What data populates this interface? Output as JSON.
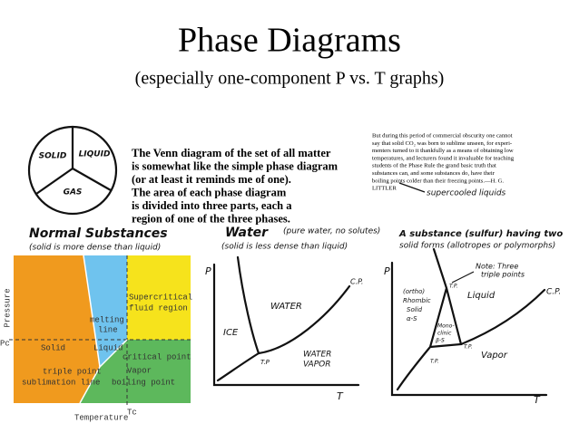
{
  "header": {
    "title": "Phase Diagrams",
    "subtitle": "(especially one-component P vs. T graphs)"
  },
  "venn": {
    "labels": [
      "SOLID",
      "LIQUID",
      "GAS"
    ],
    "caption": [
      "The Venn diagram of the set of all matter",
      "is somewhat like the simple phase diagram",
      "(or at least it reminds me of one).",
      "The area of each phase diagram",
      "is divided into three parts, each a",
      "region of one of the three phases."
    ]
  },
  "quote": {
    "lines": [
      "But during this period of commercial obscurity one cannot",
      "say that solid CO₂ was born to sublime unseen, for experi-",
      "menters turned to it thankfully as a means of obtaining low",
      "temperatures, and lecturers found it invaluable for teaching",
      "students of the Phase Rule the grand basic truth that",
      "substances can, and some substances do, have their",
      "boiling points colder than their freezing points.—H. G.",
      "LITTLER"
    ],
    "annotation": "supercooled liquids"
  },
  "panels": [
    {
      "heading": "Normal Substances",
      "notes": [
        "(solid is more dense than liquid)"
      ],
      "labels": [
        "Pressure",
        "Pc",
        "Supercritical",
        "fluid region",
        "melting",
        "line",
        "Solid",
        "Liquid",
        "critical point",
        "triple point",
        "Vapor",
        "sublimation line",
        "boiling point",
        "Temperature",
        "Tc"
      ]
    },
    {
      "heading": "Water",
      "notes": [
        "(pure water, no solutes)",
        "(solid is less dense than liquid)"
      ],
      "labels": [
        "P",
        "ICE",
        "WATER",
        "C.P.",
        "T.P",
        "WATER",
        "VAPOR",
        "T"
      ]
    },
    {
      "heading": "A substance (sulfur) having two",
      "notes": [
        "solid forms (allotropes or polymorphs)"
      ],
      "labels": [
        "P",
        "Note: Three",
        "triple points",
        "(ortho)",
        "Rhombic",
        "Solid",
        "α-S",
        "Mono-",
        "clinic",
        "β-S",
        "Liquid",
        "C.P.",
        "T.P.",
        "T.P.",
        "T.P.",
        "Vapor",
        "T"
      ]
    }
  ]
}
